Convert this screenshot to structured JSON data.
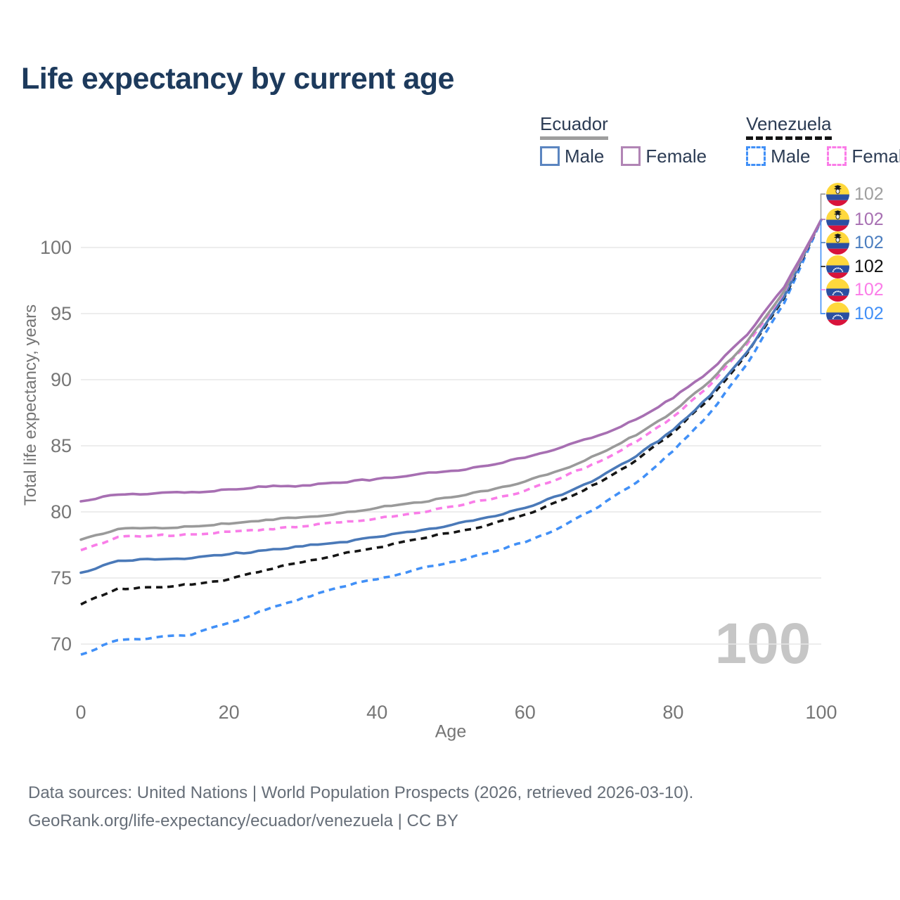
{
  "page": {
    "title": "Life expectancy by current age"
  },
  "legend": {
    "groups": [
      {
        "name": "Ecuador",
        "style": "solid",
        "underline_color": "#9e9e9e",
        "items": [
          {
            "label": "Male",
            "color": "#5b85c0",
            "dashed": false
          },
          {
            "label": "Female",
            "color": "#b185b5",
            "dashed": false
          }
        ]
      },
      {
        "name": "Venezuela",
        "style": "dashed",
        "underline_color": "#141414",
        "items": [
          {
            "label": "Male",
            "color": "#4190f7",
            "dashed": true
          },
          {
            "label": "Female",
            "color": "#fb7ce8",
            "dashed": true
          }
        ]
      }
    ]
  },
  "axes": {
    "x_label": "Age",
    "y_label": "Total life expectancy, years"
  },
  "footer": {
    "line1": "Data sources: United Nations | World Population Prospects (2026, retrieved 2026-03-10).",
    "line2": "GeoRank.org/life-expectancy/ecuador/venezuela | CC BY"
  },
  "chart_data": {
    "type": "line",
    "title": "Life expectancy by current age",
    "xlabel": "Age",
    "ylabel": "Total life expectancy, years",
    "x_ticks": [
      0,
      20,
      40,
      60,
      80,
      100
    ],
    "y_ticks": [
      70,
      75,
      80,
      85,
      90,
      95,
      100
    ],
    "xlim": [
      0,
      100
    ],
    "ylim": [
      67.5,
      103.5
    ],
    "grid": true,
    "watermark": "100",
    "x": [
      0,
      5,
      10,
      15,
      20,
      25,
      30,
      35,
      40,
      45,
      50,
      55,
      60,
      65,
      70,
      75,
      80,
      85,
      90,
      95,
      100
    ],
    "series": [
      {
        "id": "ecuador_total",
        "name": "Ecuador Total",
        "country": "Ecuador",
        "sex": "Total",
        "color": "#9a9a9a",
        "label_color": "#9e9e9e",
        "dashed": false,
        "end_label": "102",
        "values": [
          77.9,
          78.7,
          78.8,
          78.9,
          79.1,
          79.4,
          79.6,
          79.9,
          80.3,
          80.7,
          81.1,
          81.6,
          82.3,
          83.2,
          84.4,
          85.8,
          87.6,
          89.9,
          92.9,
          96.7,
          102.1
        ]
      },
      {
        "id": "ecuador_female",
        "name": "Ecuador Female",
        "country": "Ecuador",
        "sex": "Female",
        "color": "#a76fb2",
        "label_color": "#a76fb2",
        "dashed": false,
        "end_label": "102",
        "values": [
          80.8,
          81.3,
          81.4,
          81.5,
          81.7,
          81.9,
          82.0,
          82.2,
          82.5,
          82.8,
          83.1,
          83.5,
          84.1,
          84.9,
          85.8,
          87.0,
          88.6,
          90.7,
          93.4,
          97.0,
          102.1
        ]
      },
      {
        "id": "ecuador_male",
        "name": "Ecuador Male",
        "country": "Ecuador",
        "sex": "Male",
        "color": "#4a79b8",
        "label_color": "#4a7dbf",
        "dashed": false,
        "end_label": "102",
        "values": [
          75.4,
          76.3,
          76.4,
          76.5,
          76.8,
          77.1,
          77.4,
          77.7,
          78.1,
          78.5,
          79.0,
          79.6,
          80.3,
          81.3,
          82.6,
          84.2,
          86.2,
          88.8,
          92.1,
          96.3,
          102.1
        ]
      },
      {
        "id": "venezuela_total",
        "name": "Venezuela Total",
        "country": "Venezuela",
        "sex": "Total",
        "color": "#151515",
        "label_color": "#111111",
        "dashed": true,
        "end_label": "102",
        "values": [
          73.0,
          74.2,
          74.3,
          74.5,
          74.9,
          75.6,
          76.2,
          76.8,
          77.3,
          77.9,
          78.4,
          79.0,
          79.8,
          80.9,
          82.2,
          83.9,
          86.0,
          88.6,
          92.0,
          96.2,
          102.1
        ]
      },
      {
        "id": "venezuela_female",
        "name": "Venezuela Female",
        "country": "Venezuela",
        "sex": "Female",
        "color": "#f97de8",
        "label_color": "#fb7ce8",
        "dashed": true,
        "end_label": "102",
        "values": [
          77.1,
          78.1,
          78.2,
          78.3,
          78.5,
          78.7,
          78.9,
          79.2,
          79.5,
          79.9,
          80.4,
          80.9,
          81.6,
          82.6,
          83.8,
          85.3,
          87.2,
          89.6,
          92.7,
          96.6,
          102.1
        ]
      },
      {
        "id": "venezuela_male",
        "name": "Venezuela Male",
        "country": "Venezuela",
        "sex": "Male",
        "color": "#4190f7",
        "label_color": "#418ff7",
        "dashed": true,
        "end_label": "102",
        "values": [
          69.2,
          70.3,
          70.5,
          70.7,
          71.6,
          72.6,
          73.5,
          74.3,
          74.9,
          75.6,
          76.2,
          76.9,
          77.7,
          78.9,
          80.4,
          82.2,
          84.6,
          87.5,
          91.2,
          95.8,
          102.1
        ]
      }
    ],
    "legend_position": "top-right"
  }
}
